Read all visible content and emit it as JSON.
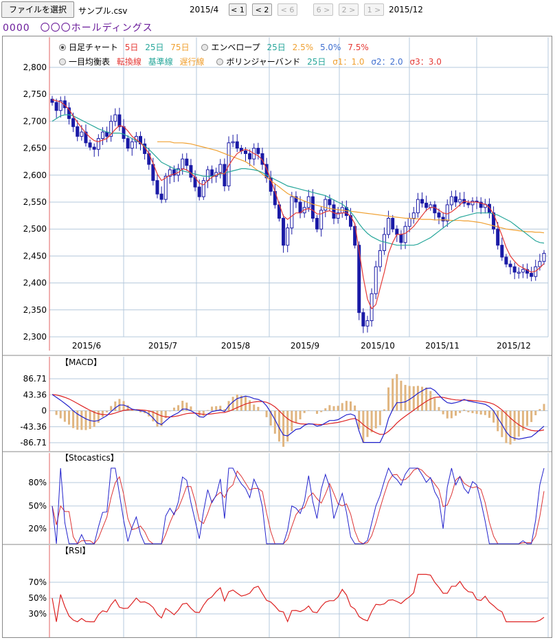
{
  "toolbar": {
    "file_button": "ファイルを選択",
    "file_name": "サンプル.csv",
    "range_start": "2015/4",
    "range_end": "2015/12",
    "nav_buttons": [
      {
        "label": "< 1",
        "enabled": true
      },
      {
        "label": "< 2",
        "enabled": true
      },
      {
        "label": "< 6",
        "enabled": false
      },
      {
        "label": "6 >",
        "enabled": false
      },
      {
        "label": "2 >",
        "enabled": false
      },
      {
        "label": "1 >",
        "enabled": false
      }
    ]
  },
  "stock_title": "0000　〇〇〇ホールディングス",
  "legend": {
    "daily_chart": "日足チャート",
    "ma5": "5日",
    "ma25": "25日",
    "ma75": "75日",
    "envelope": "エンベロープ",
    "env_days": "25日",
    "env1": "2.5%",
    "env2": "5.0%",
    "env3": "7.5%",
    "ichimoku": "一目均衡表",
    "tenkan": "転換線",
    "kijun": "基準線",
    "chikou": "遅行線",
    "bollinger": "ボリンジャーバンド",
    "boll_days": "25日",
    "sigma1": "σ1：1.0",
    "sigma2": "σ2：2.0",
    "sigma3": "σ3：3.0",
    "selected": "daily_chart"
  },
  "colors": {
    "ma5": "#e53935",
    "ma25": "#26a69a",
    "ma75": "#f0a030",
    "candle": "#1a1aa6",
    "macd": "#2222cc",
    "signal": "#dd2222",
    "hist": "#e0b580",
    "grid": "#b4c8dc"
  },
  "chart_data": [
    {
      "type": "candlestick",
      "title": "",
      "x_labels": [
        "2015/6",
        "2015/7",
        "2015/8",
        "2015/9",
        "2015/10",
        "2015/11",
        "2015/12"
      ],
      "y_ticks": [
        "2,800",
        "2,750",
        "2,700",
        "2,650",
        "2,600",
        "2,550",
        "2,500",
        "2,450",
        "2,400",
        "2,350",
        "2,300"
      ],
      "ylim": [
        2300,
        2800
      ],
      "close": [
        2735,
        2720,
        2738,
        2725,
        2705,
        2690,
        2672,
        2680,
        2660,
        2652,
        2648,
        2668,
        2680,
        2672,
        2700,
        2712,
        2690,
        2668,
        2650,
        2662,
        2672,
        2658,
        2640,
        2620,
        2590,
        2565,
        2555,
        2598,
        2610,
        2600,
        2612,
        2630,
        2618,
        2596,
        2578,
        2560,
        2590,
        2610,
        2598,
        2605,
        2620,
        2580,
        2660,
        2662,
        2650,
        2645,
        2640,
        2630,
        2650,
        2640,
        2620,
        2595,
        2570,
        2545,
        2520,
        2470,
        2502,
        2560,
        2550,
        2530,
        2540,
        2560,
        2520,
        2500,
        2535,
        2555,
        2545,
        2520,
        2530,
        2540,
        2525,
        2505,
        2470,
        2345,
        2320,
        2330,
        2380,
        2430,
        2460,
        2490,
        2520,
        2500,
        2490,
        2475,
        2505,
        2520,
        2530,
        2555,
        2548,
        2540,
        2545,
        2530,
        2522,
        2515,
        2545,
        2560,
        2550,
        2555,
        2548,
        2545,
        2552,
        2550,
        2540,
        2546,
        2530,
        2500,
        2470,
        2448,
        2435,
        2430,
        2420,
        2420,
        2425,
        2418,
        2412,
        2430,
        2440,
        2455
      ],
      "ma5": [
        2740,
        2738,
        2736,
        2730,
        2722,
        2710,
        2698,
        2688,
        2678,
        2670,
        2664,
        2662,
        2665,
        2668,
        2676,
        2685,
        2692,
        2690,
        2682,
        2672,
        2666,
        2660,
        2652,
        2640,
        2622,
        2602,
        2590,
        2595,
        2600,
        2602,
        2605,
        2612,
        2610,
        2604,
        2596,
        2585,
        2582,
        2590,
        2596,
        2600,
        2604,
        2602,
        2618,
        2630,
        2640,
        2645,
        2648,
        2645,
        2640,
        2636,
        2628,
        2612,
        2592,
        2570,
        2546,
        2524,
        2518,
        2524,
        2530,
        2530,
        2536,
        2538,
        2535,
        2528,
        2528,
        2532,
        2534,
        2530,
        2528,
        2530,
        2530,
        2524,
        2510,
        2460,
        2410,
        2370,
        2352,
        2360,
        2390,
        2420,
        2455,
        2475,
        2490,
        2490,
        2492,
        2498,
        2505,
        2515,
        2525,
        2535,
        2540,
        2540,
        2535,
        2530,
        2528,
        2532,
        2538,
        2545,
        2552,
        2550,
        2550,
        2550,
        2548,
        2546,
        2540,
        2528,
        2508,
        2488,
        2466,
        2450,
        2440,
        2432,
        2428,
        2424,
        2420,
        2422,
        2428,
        2436
      ],
      "ma25": [
        2700,
        2705,
        2710,
        2712,
        2712,
        2710,
        2706,
        2702,
        2698,
        2694,
        2690,
        2686,
        2683,
        2680,
        2678,
        2678,
        2678,
        2676,
        2672,
        2668,
        2664,
        2660,
        2654,
        2648,
        2640,
        2632,
        2624,
        2620,
        2616,
        2612,
        2610,
        2608,
        2606,
        2604,
        2602,
        2600,
        2598,
        2598,
        2598,
        2600,
        2602,
        2604,
        2606,
        2608,
        2610,
        2612,
        2612,
        2611,
        2610,
        2608,
        2605,
        2600,
        2596,
        2592,
        2588,
        2584,
        2580,
        2578,
        2576,
        2574,
        2572,
        2570,
        2568,
        2566,
        2564,
        2562,
        2558,
        2554,
        2550,
        2546,
        2540,
        2532,
        2522,
        2510,
        2500,
        2492,
        2486,
        2482,
        2478,
        2476,
        2474,
        2472,
        2470,
        2470,
        2470,
        2470,
        2470,
        2472,
        2476,
        2480,
        2484,
        2490,
        2496,
        2502,
        2508,
        2514,
        2518,
        2522,
        2524,
        2526,
        2528,
        2530,
        2530,
        2530,
        2530,
        2528,
        2526,
        2522,
        2518,
        2514,
        2508,
        2502,
        2496,
        2490,
        2484,
        2478,
        2475,
        2474
      ],
      "ma75": [
        null,
        null,
        null,
        null,
        null,
        null,
        null,
        null,
        null,
        null,
        null,
        null,
        null,
        null,
        null,
        null,
        null,
        null,
        null,
        null,
        null,
        null,
        null,
        null,
        null,
        2662,
        2662,
        2662,
        2662,
        2660,
        2660,
        2660,
        2659,
        2658,
        2656,
        2654,
        2652,
        2650,
        2648,
        2646,
        2643,
        2640,
        2637,
        2634,
        2631,
        2628,
        2625,
        2620,
        2614,
        2608,
        2602,
        2596,
        2590,
        2584,
        2578,
        2572,
        2566,
        2562,
        2558,
        2555,
        2552,
        2549,
        2546,
        2544,
        2542,
        2540,
        2538,
        2537,
        2536,
        2535,
        2534,
        2533,
        2532,
        2531,
        2530,
        2529,
        2528,
        2527,
        2526,
        2525,
        2524,
        2523,
        2522,
        2521,
        2520,
        2520,
        2519,
        2519,
        2518,
        2518,
        2518,
        2517,
        2517,
        2517,
        2517,
        2516,
        2516,
        2516,
        2515,
        2515,
        2514,
        2513,
        2512,
        2510,
        2508,
        2506,
        2504,
        2502,
        2500,
        2499,
        2498,
        2497,
        2496,
        2495,
        2495,
        2494,
        2494,
        2493
      ]
    },
    {
      "type": "bar",
      "title": "【MACD】",
      "y_ticks": [
        "86.71",
        "43.36",
        "0",
        "-43.36",
        "-86.71"
      ],
      "ylim": [
        -86.71,
        86.71
      ]
    },
    {
      "type": "line",
      "title": "【Stocastics】",
      "y_ticks": [
        "80%",
        "50%",
        "20%"
      ]
    },
    {
      "type": "line",
      "title": "【RSI】",
      "y_ticks": [
        "70%",
        "50%",
        "30%"
      ]
    }
  ]
}
